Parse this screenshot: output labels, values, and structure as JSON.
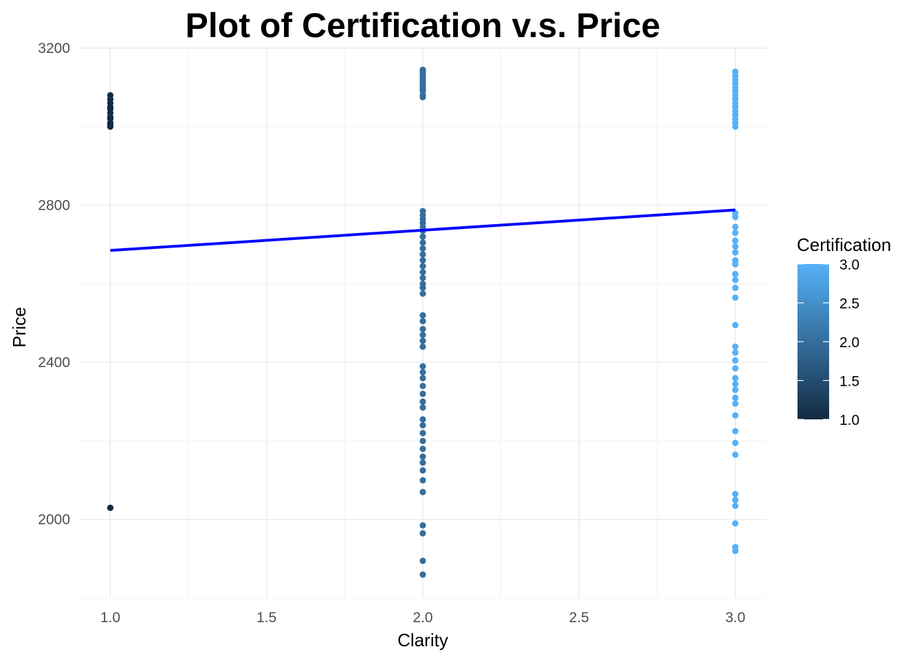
{
  "chart_data": {
    "type": "scatter",
    "title": "Plot of Certification v.s. Price",
    "xlabel": "Clarity",
    "ylabel": "Price",
    "xlim": [
      0.9,
      3.1
    ],
    "ylim": [
      1800,
      3200
    ],
    "x_ticks": [
      "1.0",
      "1.5",
      "2.0",
      "2.5",
      "3.0"
    ],
    "x_tick_values": [
      1.0,
      1.5,
      2.0,
      2.5,
      3.0
    ],
    "y_ticks": [
      "2000",
      "2400",
      "2800",
      "3200"
    ],
    "y_tick_values": [
      2000,
      2400,
      2800,
      3200
    ],
    "grid": true,
    "color_scale": {
      "title": "Certification",
      "min": 1.0,
      "max": 3.0,
      "low_color": "#132b43",
      "high_color": "#56b1f7",
      "ticks": [
        "1.0",
        "1.5",
        "2.0",
        "2.5",
        "3.0"
      ],
      "tick_values": [
        1.0,
        1.5,
        2.0,
        2.5,
        3.0
      ],
      "legend_position": "right"
    },
    "points": [
      {
        "x": 1,
        "y": 3080,
        "c": 1
      },
      {
        "x": 1,
        "y": 3070,
        "c": 1
      },
      {
        "x": 1,
        "y": 3060,
        "c": 1
      },
      {
        "x": 1,
        "y": 3050,
        "c": 1
      },
      {
        "x": 1,
        "y": 3045,
        "c": 1
      },
      {
        "x": 1,
        "y": 3035,
        "c": 1
      },
      {
        "x": 1,
        "y": 3025,
        "c": 1
      },
      {
        "x": 1,
        "y": 3020,
        "c": 1
      },
      {
        "x": 1,
        "y": 3010,
        "c": 1
      },
      {
        "x": 1,
        "y": 3005,
        "c": 1
      },
      {
        "x": 1,
        "y": 3000,
        "c": 1
      },
      {
        "x": 1,
        "y": 2030,
        "c": 1
      },
      {
        "x": 2,
        "y": 3145,
        "c": 2
      },
      {
        "x": 2,
        "y": 3140,
        "c": 2
      },
      {
        "x": 2,
        "y": 3135,
        "c": 2
      },
      {
        "x": 2,
        "y": 3130,
        "c": 2
      },
      {
        "x": 2,
        "y": 3125,
        "c": 2
      },
      {
        "x": 2,
        "y": 3120,
        "c": 2
      },
      {
        "x": 2,
        "y": 3115,
        "c": 2
      },
      {
        "x": 2,
        "y": 3110,
        "c": 2
      },
      {
        "x": 2,
        "y": 3105,
        "c": 2
      },
      {
        "x": 2,
        "y": 3100,
        "c": 2
      },
      {
        "x": 2,
        "y": 3095,
        "c": 2
      },
      {
        "x": 2,
        "y": 3090,
        "c": 2
      },
      {
        "x": 2,
        "y": 3080,
        "c": 2
      },
      {
        "x": 2,
        "y": 3075,
        "c": 2
      },
      {
        "x": 2,
        "y": 2785,
        "c": 2
      },
      {
        "x": 2,
        "y": 2775,
        "c": 2
      },
      {
        "x": 2,
        "y": 2765,
        "c": 2
      },
      {
        "x": 2,
        "y": 2755,
        "c": 2
      },
      {
        "x": 2,
        "y": 2745,
        "c": 2
      },
      {
        "x": 2,
        "y": 2735,
        "c": 2
      },
      {
        "x": 2,
        "y": 2720,
        "c": 2
      },
      {
        "x": 2,
        "y": 2705,
        "c": 2
      },
      {
        "x": 2,
        "y": 2690,
        "c": 2
      },
      {
        "x": 2,
        "y": 2675,
        "c": 2
      },
      {
        "x": 2,
        "y": 2660,
        "c": 2
      },
      {
        "x": 2,
        "y": 2645,
        "c": 2
      },
      {
        "x": 2,
        "y": 2630,
        "c": 2
      },
      {
        "x": 2,
        "y": 2615,
        "c": 2
      },
      {
        "x": 2,
        "y": 2600,
        "c": 2
      },
      {
        "x": 2,
        "y": 2590,
        "c": 2
      },
      {
        "x": 2,
        "y": 2575,
        "c": 2
      },
      {
        "x": 2,
        "y": 2520,
        "c": 2
      },
      {
        "x": 2,
        "y": 2505,
        "c": 2
      },
      {
        "x": 2,
        "y": 2485,
        "c": 2
      },
      {
        "x": 2,
        "y": 2470,
        "c": 2
      },
      {
        "x": 2,
        "y": 2455,
        "c": 2
      },
      {
        "x": 2,
        "y": 2440,
        "c": 2
      },
      {
        "x": 2,
        "y": 2390,
        "c": 2
      },
      {
        "x": 2,
        "y": 2375,
        "c": 2
      },
      {
        "x": 2,
        "y": 2360,
        "c": 2
      },
      {
        "x": 2,
        "y": 2340,
        "c": 2
      },
      {
        "x": 2,
        "y": 2320,
        "c": 2
      },
      {
        "x": 2,
        "y": 2300,
        "c": 2
      },
      {
        "x": 2,
        "y": 2285,
        "c": 2
      },
      {
        "x": 2,
        "y": 2255,
        "c": 2
      },
      {
        "x": 2,
        "y": 2240,
        "c": 2
      },
      {
        "x": 2,
        "y": 2220,
        "c": 2
      },
      {
        "x": 2,
        "y": 2200,
        "c": 2
      },
      {
        "x": 2,
        "y": 2180,
        "c": 2
      },
      {
        "x": 2,
        "y": 2160,
        "c": 2
      },
      {
        "x": 2,
        "y": 2145,
        "c": 2
      },
      {
        "x": 2,
        "y": 2125,
        "c": 2
      },
      {
        "x": 2,
        "y": 2100,
        "c": 2
      },
      {
        "x": 2,
        "y": 2070,
        "c": 2
      },
      {
        "x": 2,
        "y": 1985,
        "c": 2
      },
      {
        "x": 2,
        "y": 1965,
        "c": 2
      },
      {
        "x": 2,
        "y": 1895,
        "c": 2
      },
      {
        "x": 2,
        "y": 1860,
        "c": 2
      },
      {
        "x": 3,
        "y": 3140,
        "c": 3
      },
      {
        "x": 3,
        "y": 3130,
        "c": 3
      },
      {
        "x": 3,
        "y": 3120,
        "c": 3
      },
      {
        "x": 3,
        "y": 3110,
        "c": 3
      },
      {
        "x": 3,
        "y": 3100,
        "c": 3
      },
      {
        "x": 3,
        "y": 3090,
        "c": 3
      },
      {
        "x": 3,
        "y": 3080,
        "c": 3
      },
      {
        "x": 3,
        "y": 3070,
        "c": 3
      },
      {
        "x": 3,
        "y": 3060,
        "c": 3
      },
      {
        "x": 3,
        "y": 3050,
        "c": 3
      },
      {
        "x": 3,
        "y": 3040,
        "c": 3
      },
      {
        "x": 3,
        "y": 3030,
        "c": 3
      },
      {
        "x": 3,
        "y": 3020,
        "c": 3
      },
      {
        "x": 3,
        "y": 3010,
        "c": 3
      },
      {
        "x": 3,
        "y": 3000,
        "c": 3
      },
      {
        "x": 3,
        "y": 2780,
        "c": 3
      },
      {
        "x": 3,
        "y": 2770,
        "c": 3
      },
      {
        "x": 3,
        "y": 2745,
        "c": 3
      },
      {
        "x": 3,
        "y": 2730,
        "c": 3
      },
      {
        "x": 3,
        "y": 2710,
        "c": 3
      },
      {
        "x": 3,
        "y": 2695,
        "c": 3
      },
      {
        "x": 3,
        "y": 2680,
        "c": 3
      },
      {
        "x": 3,
        "y": 2660,
        "c": 3
      },
      {
        "x": 3,
        "y": 2650,
        "c": 3
      },
      {
        "x": 3,
        "y": 2625,
        "c": 3
      },
      {
        "x": 3,
        "y": 2610,
        "c": 3
      },
      {
        "x": 3,
        "y": 2590,
        "c": 3
      },
      {
        "x": 3,
        "y": 2565,
        "c": 3
      },
      {
        "x": 3,
        "y": 2495,
        "c": 3
      },
      {
        "x": 3,
        "y": 2440,
        "c": 3
      },
      {
        "x": 3,
        "y": 2425,
        "c": 3
      },
      {
        "x": 3,
        "y": 2405,
        "c": 3
      },
      {
        "x": 3,
        "y": 2385,
        "c": 3
      },
      {
        "x": 3,
        "y": 2360,
        "c": 3
      },
      {
        "x": 3,
        "y": 2345,
        "c": 3
      },
      {
        "x": 3,
        "y": 2330,
        "c": 3
      },
      {
        "x": 3,
        "y": 2310,
        "c": 3
      },
      {
        "x": 3,
        "y": 2295,
        "c": 3
      },
      {
        "x": 3,
        "y": 2265,
        "c": 3
      },
      {
        "x": 3,
        "y": 2225,
        "c": 3
      },
      {
        "x": 3,
        "y": 2195,
        "c": 3
      },
      {
        "x": 3,
        "y": 2165,
        "c": 3
      },
      {
        "x": 3,
        "y": 2065,
        "c": 3
      },
      {
        "x": 3,
        "y": 2050,
        "c": 3
      },
      {
        "x": 3,
        "y": 2035,
        "c": 3
      },
      {
        "x": 3,
        "y": 1990,
        "c": 3
      },
      {
        "x": 3,
        "y": 1930,
        "c": 3
      },
      {
        "x": 3,
        "y": 1920,
        "c": 3
      }
    ],
    "trend_line": {
      "color": "#0000ff",
      "x": [
        1.0,
        3.0
      ],
      "y": [
        2685,
        2788
      ]
    }
  }
}
